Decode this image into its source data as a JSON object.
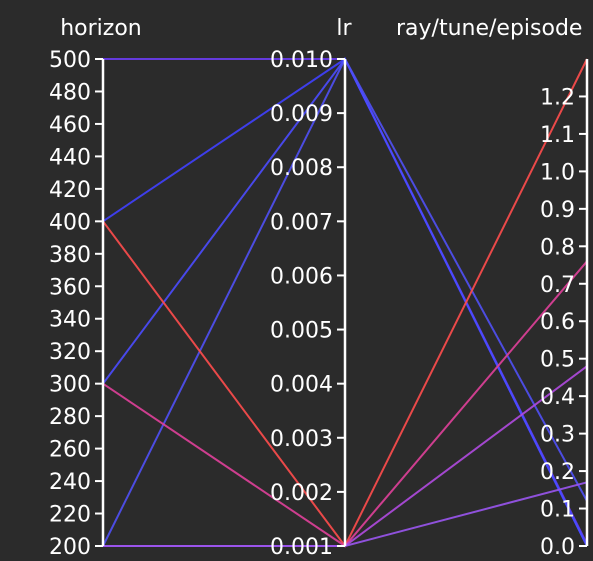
{
  "chart_data": {
    "type": "parallel_coordinates",
    "axes": [
      {
        "key": "horizon",
        "title": "horizon",
        "range": [
          200,
          500
        ],
        "ticks": [
          200,
          220,
          240,
          260,
          280,
          300,
          320,
          340,
          360,
          380,
          400,
          420,
          440,
          460,
          480,
          500
        ],
        "tick_labels": [
          "200",
          "220",
          "240",
          "260",
          "280",
          "300",
          "320",
          "340",
          "360",
          "380",
          "400",
          "420",
          "440",
          "460",
          "480",
          "500"
        ]
      },
      {
        "key": "lr",
        "title": "lr",
        "range": [
          0.001,
          0.01
        ],
        "ticks": [
          0.001,
          0.002,
          0.003,
          0.004,
          0.005,
          0.006,
          0.007,
          0.008,
          0.009,
          0.01
        ],
        "tick_labels": [
          "0.001",
          "0.002",
          "0.003",
          "0.004",
          "0.005",
          "0.006",
          "0.007",
          "0.008",
          "0.009",
          "0.010"
        ]
      },
      {
        "key": "episode_metric",
        "title": "ray/tune/episode",
        "range": [
          0.0,
          1.3
        ],
        "ticks": [
          0.0,
          0.1,
          0.2,
          0.3,
          0.4,
          0.5,
          0.6,
          0.7,
          0.8,
          0.9,
          1.0,
          1.1,
          1.2
        ],
        "tick_labels": [
          "0.0",
          "0.1",
          "0.2",
          "0.3",
          "0.4",
          "0.5",
          "0.6",
          "0.7",
          "0.8",
          "0.9",
          "1.0",
          "1.1",
          "1.2"
        ]
      }
    ],
    "lines": [
      {
        "values": [
          500,
          0.01,
          0.005
        ],
        "color": "#6a3cf0"
      },
      {
        "values": [
          400,
          0.01,
          0.0
        ],
        "color": "#4040ff"
      },
      {
        "values": [
          300,
          0.01,
          0.0
        ],
        "color": "#4b4bff"
      },
      {
        "values": [
          200,
          0.01,
          0.12
        ],
        "color": "#5050f5"
      },
      {
        "values": [
          400,
          0.001,
          1.3
        ],
        "color": "#ff4d4d"
      },
      {
        "values": [
          300,
          0.001,
          0.76
        ],
        "color": "#e0409a"
      },
      {
        "values": [
          200,
          0.001,
          0.48
        ],
        "color": "#b04ae0"
      },
      {
        "values": [
          200,
          0.001,
          0.17
        ],
        "color": "#9a55f0"
      }
    ]
  }
}
